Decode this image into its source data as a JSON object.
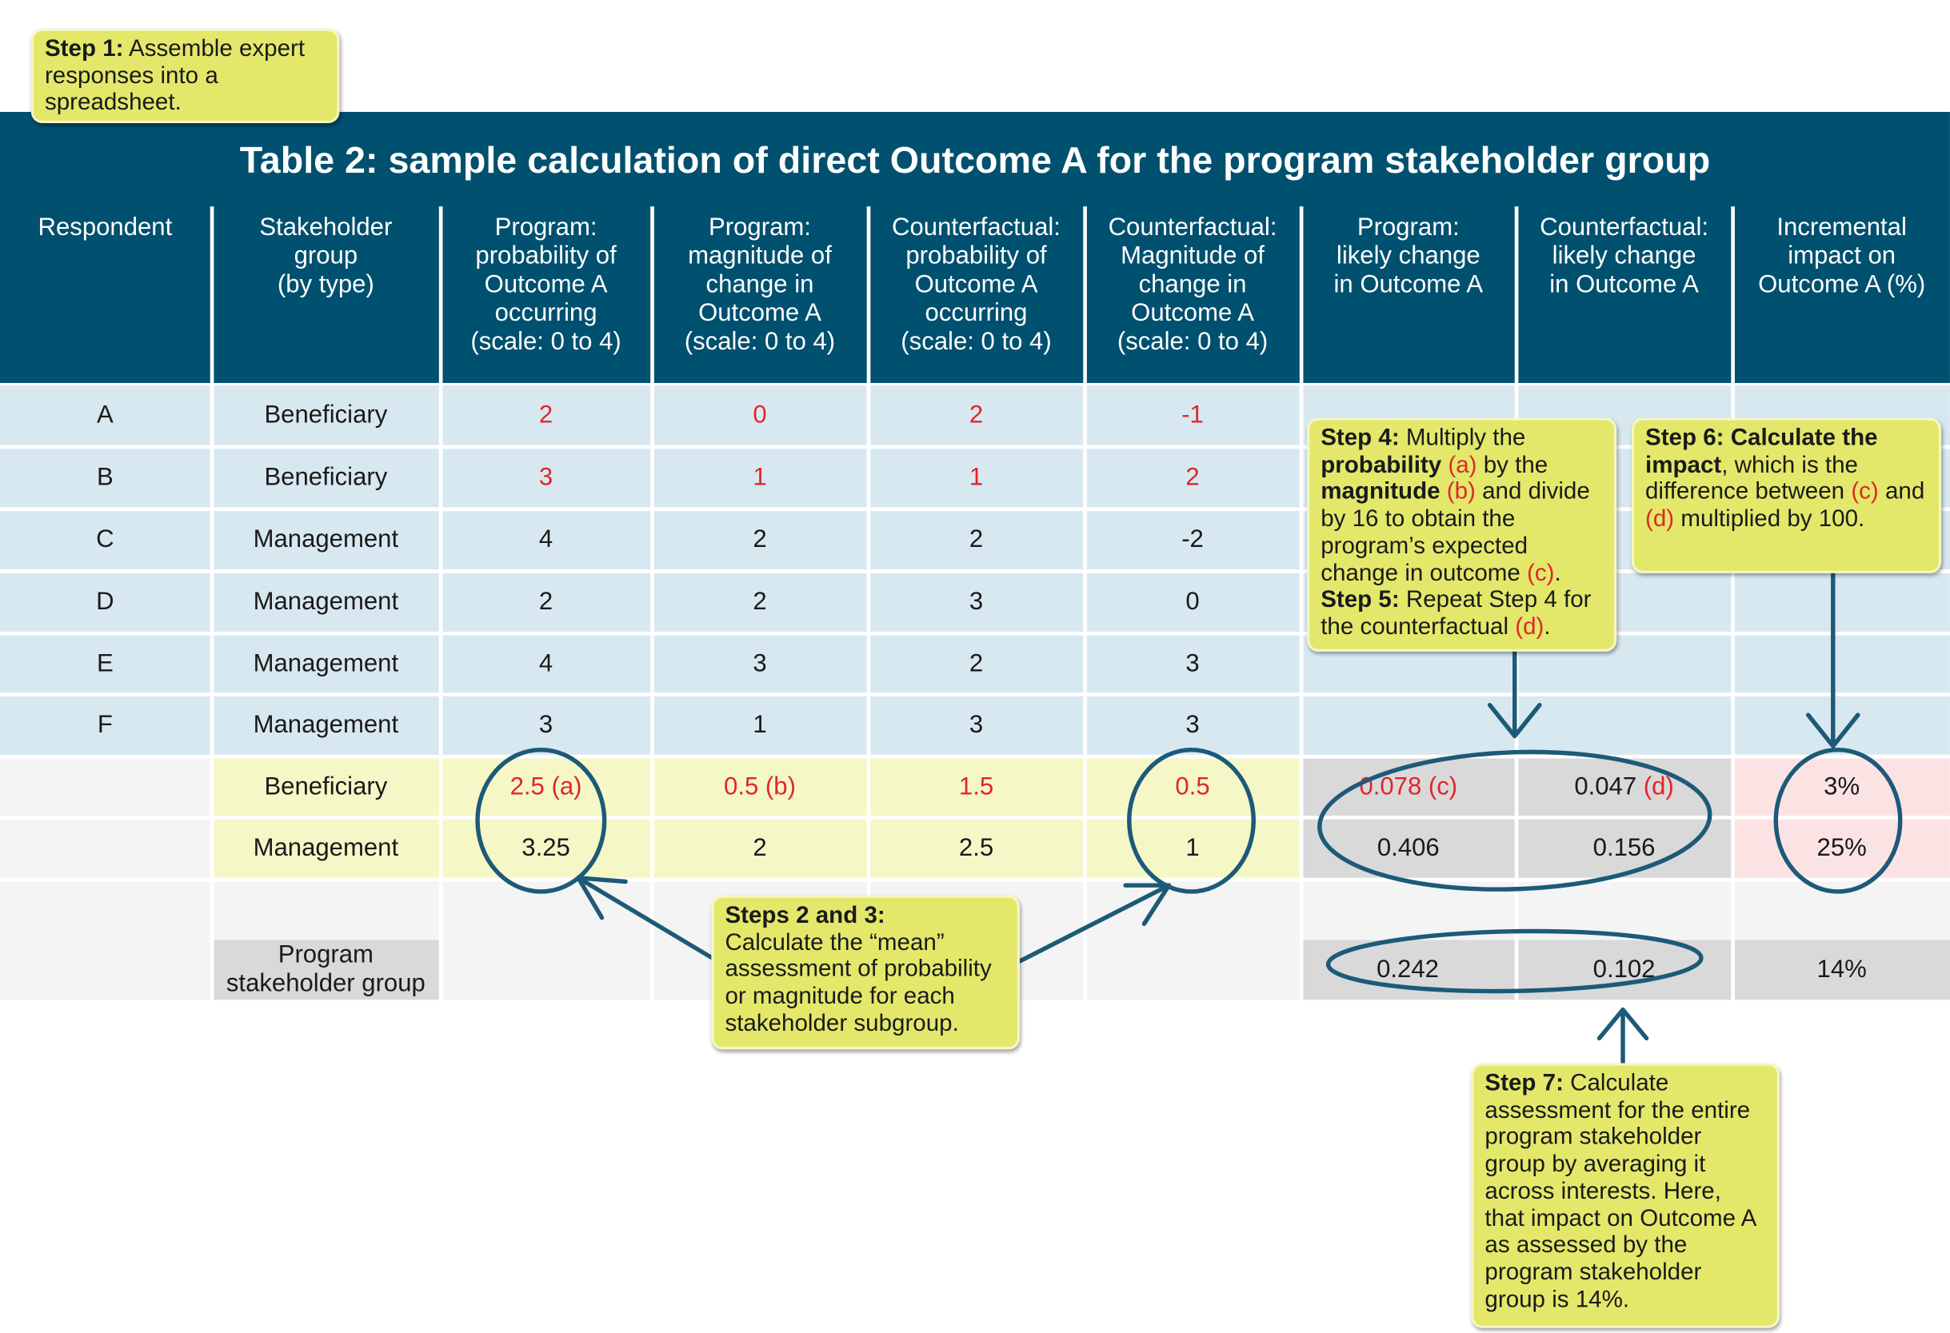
{
  "title": "Table 2: sample calculation of direct Outcome A for the program stakeholder group",
  "headers": [
    "Respondent",
    "Stakeholder\ngroup\n(by type)",
    "Program:\nprobability of\nOutcome A\noccurring\n(scale: 0 to 4)",
    "Program:\nmagnitude of\nchange in\nOutcome A\n(scale: 0 to 4)",
    "Counterfactual:\nprobability of\nOutcome A\noccurring\n(scale: 0 to 4)",
    "Counterfactual:\nMagnitude of\nchange in\nOutcome A\n(scale: 0 to 4)",
    "Program:\nlikely change\nin Outcome A",
    "Counterfactual:\nlikely change\nin Outcome A",
    "Incremental\nimpact on\nOutcome A (%)"
  ],
  "rows": [
    {
      "respondent": "A",
      "group": "Beneficiary",
      "values": [
        "2",
        "0",
        "2",
        "-1"
      ],
      "highlight": true
    },
    {
      "respondent": "B",
      "group": "Beneficiary",
      "values": [
        "3",
        "1",
        "1",
        "2"
      ],
      "highlight": true
    },
    {
      "respondent": "C",
      "group": "Management",
      "values": [
        "4",
        "2",
        "2",
        "-2"
      ],
      "highlight": false
    },
    {
      "respondent": "D",
      "group": "Management",
      "values": [
        "2",
        "2",
        "3",
        "0"
      ],
      "highlight": false
    },
    {
      "respondent": "E",
      "group": "Management",
      "values": [
        "4",
        "3",
        "2",
        "3"
      ],
      "highlight": false
    },
    {
      "respondent": "F",
      "group": "Management",
      "values": [
        "3",
        "1",
        "3",
        "3"
      ],
      "highlight": false
    }
  ],
  "means": [
    {
      "group": "Beneficiary",
      "values": [
        "2.5",
        "0.5",
        "1.5",
        "0.5"
      ],
      "tags": [
        "(a)",
        "(b)",
        "",
        ""
      ],
      "prog_change": "0.078",
      "prog_tag": "(c)",
      "cf_change": "0.047",
      "cf_tag": "(d)",
      "impact": "3%",
      "highlight": true
    },
    {
      "group": "Management",
      "values": [
        "3.25",
        "2",
        "2.5",
        "1"
      ],
      "tags": [
        "",
        "",
        "",
        ""
      ],
      "prog_change": "0.406",
      "prog_tag": "",
      "cf_change": "0.156",
      "cf_tag": "",
      "impact": "25%",
      "highlight": false
    }
  ],
  "total": {
    "label": "Program\nstakeholder group",
    "prog_change": "0.242",
    "cf_change": "0.102",
    "impact": "14%"
  },
  "callouts": {
    "step1": {
      "bold": "Step 1:",
      "text": " Assemble expert responses into a spreadsheet."
    },
    "step23": {
      "bold": "Steps 2 and 3:",
      "text": "Calculate the “mean” assessment of probability or magnitude for each stakeholder subgroup."
    },
    "step45": {
      "s4_bold": "Step 4:",
      "s4_t1": " Multiply the ",
      "s4_b2": "probability",
      "s4_a": "(a)",
      "s4_t2": " by the ",
      "s4_b3": "magnitude",
      "s4_b": "(b)",
      "s4_t3": " and divide by 16 to obtain the program’s expected change in outcome ",
      "s4_c": "(c)",
      "s4_end": ".",
      "s5_bold": "Step 5:",
      "s5_t": " Repeat Step 4 for the counterfactual ",
      "s5_d": "(d)",
      "s5_end": "."
    },
    "step6": {
      "bold": "Step 6: Calculate the impact",
      "t1": ", which is the difference between ",
      "c": "(c)",
      "t2": " and ",
      "d": "(d)",
      "t3": " multiplied by 100."
    },
    "step7": {
      "bold": "Step 7:",
      "text": " Calculate assessment for the entire program stakeholder group by averaging it across interests. Here, that impact on Outcome A as assessed by the program stakeholder group is 14%."
    }
  },
  "colors": {
    "header": "#00506f",
    "row_blue": "#d8e8f0",
    "row_yellow": "#f5f7c6",
    "row_gray": "#d9d9da",
    "row_pink": "#fbe3e4",
    "row_light": "#f4f4f4",
    "callout": "#e3e86a",
    "red": "#e0262a",
    "annotation": "#1d5a78"
  }
}
